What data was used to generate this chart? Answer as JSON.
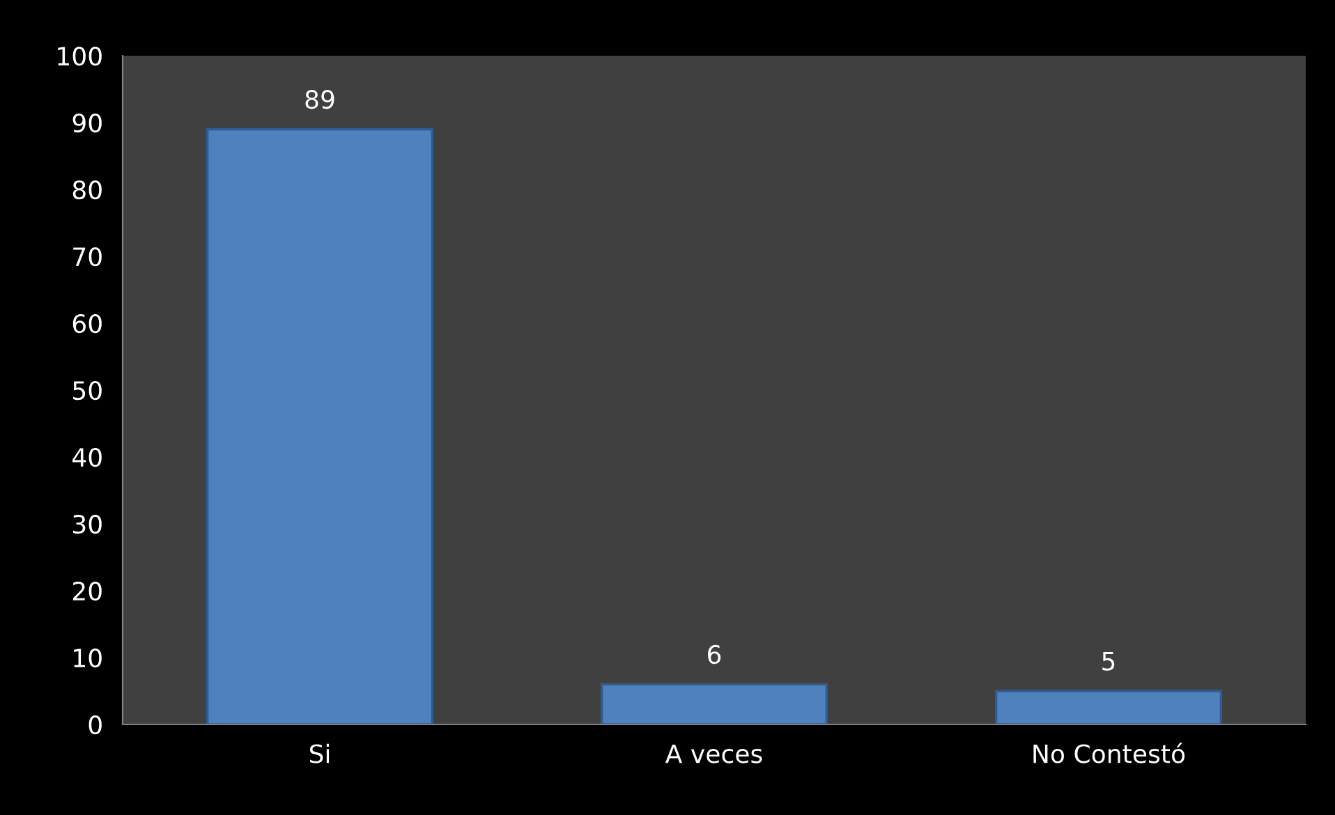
{
  "chart_data": {
    "type": "bar",
    "categories": [
      "Si",
      "A veces",
      "No Contestó"
    ],
    "values": [
      89,
      6,
      5
    ],
    "color": "#4f81bd",
    "ylim": [
      0,
      100
    ],
    "yticks": [
      0,
      10,
      20,
      30,
      40,
      50,
      60,
      70,
      80,
      90,
      100
    ],
    "data_labels": true,
    "grid": false,
    "legend": false
  }
}
